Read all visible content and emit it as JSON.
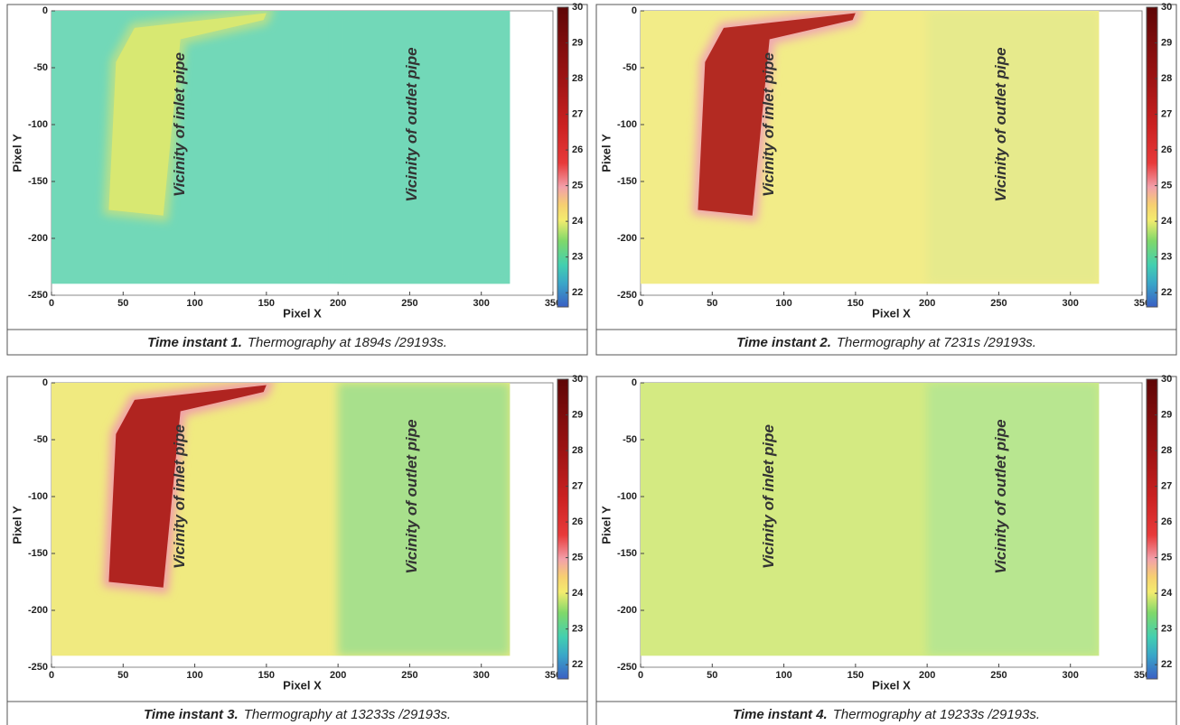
{
  "chart_data": [
    {
      "type": "heatmap",
      "xlabel": "Pixel X",
      "ylabel": "Pixel Y",
      "xlim": [
        0,
        350
      ],
      "ylim": [
        -250,
        0
      ],
      "xticks": [
        0,
        50,
        100,
        150,
        200,
        250,
        300,
        350
      ],
      "yticks": [
        0,
        -50,
        -100,
        -150,
        -200,
        -250
      ],
      "colorbar": {
        "clim": [
          21.6,
          30
        ],
        "ticks": [
          22,
          23,
          24,
          25,
          26,
          27,
          28,
          29,
          30
        ]
      },
      "annotations": [
        "Vicinity of inlet pipe",
        "Vicinity of outlet pipe"
      ],
      "caption_title": "Time instant 1.",
      "caption_text": "Thermography at 1894s /29193s."
    },
    {
      "type": "heatmap",
      "xlabel": "Pixel X",
      "ylabel": "Pixel Y",
      "xlim": [
        0,
        350
      ],
      "ylim": [
        -250,
        0
      ],
      "xticks": [
        0,
        50,
        100,
        150,
        200,
        250,
        300,
        350
      ],
      "yticks": [
        0,
        -50,
        -100,
        -150,
        -200,
        -250
      ],
      "colorbar": {
        "clim": [
          21.6,
          30
        ],
        "ticks": [
          22,
          23,
          24,
          25,
          26,
          27,
          28,
          29,
          30
        ]
      },
      "annotations": [
        "Vicinity of inlet pipe",
        "Vicinity of outlet pipe"
      ],
      "caption_title": "Time instant 2.",
      "caption_text": "Thermography at 7231s /29193s."
    },
    {
      "type": "heatmap",
      "xlabel": "Pixel X",
      "ylabel": "Pixel Y",
      "xlim": [
        0,
        350
      ],
      "ylim": [
        -250,
        0
      ],
      "xticks": [
        0,
        50,
        100,
        150,
        200,
        250,
        300,
        350
      ],
      "yticks": [
        0,
        -50,
        -100,
        -150,
        -200,
        -250
      ],
      "colorbar": {
        "clim": [
          21.6,
          30
        ],
        "ticks": [
          22,
          23,
          24,
          25,
          26,
          27,
          28,
          29,
          30
        ]
      },
      "annotations": [
        "Vicinity of inlet pipe",
        "Vicinity of outlet pipe"
      ],
      "caption_title": "Time instant 3.",
      "caption_text": "Thermography at 13233s /29193s."
    },
    {
      "type": "heatmap",
      "xlabel": "Pixel X",
      "ylabel": "Pixel Y",
      "xlim": [
        0,
        350
      ],
      "ylim": [
        -250,
        0
      ],
      "xticks": [
        0,
        50,
        100,
        150,
        200,
        250,
        300,
        350
      ],
      "yticks": [
        0,
        -50,
        -100,
        -150,
        -200,
        -250
      ],
      "colorbar": {
        "clim": [
          21.6,
          30
        ],
        "ticks": [
          22,
          23,
          24,
          25,
          26,
          27,
          28,
          29,
          30
        ]
      },
      "annotations": [
        "Vicinity of inlet pipe",
        "Vicinity of outlet pipe"
      ],
      "caption_title": "Time instant 4.",
      "caption_text": "Thermography at 19233s /29193s."
    }
  ]
}
